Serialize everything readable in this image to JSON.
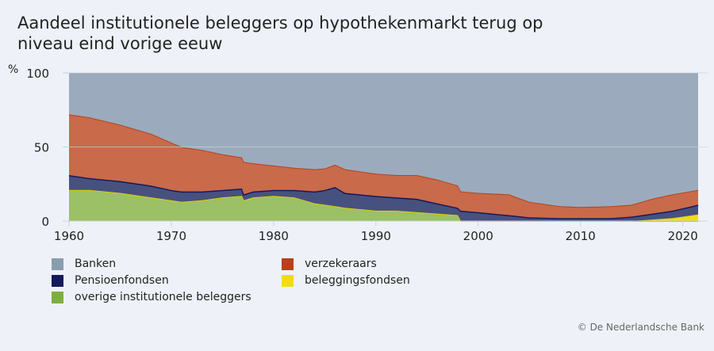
{
  "chart_data": {
    "type": "area",
    "stacked": true,
    "title": "Aandeel institutionele beleggers op hypothekenmarkt terug op niveau eind vorige eeuw",
    "title_lines": [
      "Aandeel institutionele beleggers op hypothekenmarkt terug op",
      "niveau eind vorige eeuw"
    ],
    "ylabel": "%",
    "xlabel": "",
    "ylim": [
      0,
      100
    ],
    "xlim": [
      1960,
      2021.5
    ],
    "yticks": [
      "0",
      "50",
      "100"
    ],
    "xticks": [
      "1960",
      "1970",
      "1980",
      "1990",
      "2000",
      "2010",
      "2020"
    ],
    "grid": true,
    "legend_placement": "bottom",
    "x": [
      1960,
      1962,
      1965,
      1968,
      1970,
      1971,
      1973,
      1975,
      1976.9,
      1977.1,
      1978,
      1980,
      1982,
      1984,
      1985,
      1986,
      1987,
      1990,
      1992,
      1994,
      1996,
      1998,
      1998.3,
      2000,
      2003,
      2005,
      2008,
      2010,
      2013,
      2015,
      2017,
      2019,
      2021.5
    ],
    "series": [
      {
        "name": "overige institutionele beleggers",
        "color": "#9bc066",
        "line": "#8ab34f",
        "values": [
          21,
          21,
          19,
          16,
          14,
          13,
          14,
          16,
          17,
          14,
          16,
          17,
          16,
          12,
          11,
          10,
          9,
          7,
          7,
          6,
          5,
          4,
          0,
          0,
          0,
          0,
          0,
          0,
          0,
          0,
          0,
          0,
          0
        ]
      },
      {
        "name": "beleggingsfondsen",
        "color": "#f0dc1c",
        "line": "#e6cf00",
        "values": [
          0,
          0,
          0,
          0,
          0,
          0,
          0,
          0,
          0,
          0,
          0,
          0,
          0,
          0,
          0,
          0,
          0,
          0,
          0,
          0,
          0,
          0,
          0,
          0,
          0,
          0,
          0,
          0,
          0,
          0,
          1,
          2,
          4.5
        ]
      },
      {
        "name": "Pensioenfondsen",
        "color": "#47517f",
        "line": "#141a5c",
        "values": [
          10,
          8,
          8,
          8,
          7,
          7,
          6,
          5,
          5,
          4,
          4,
          4,
          5,
          8,
          10,
          13,
          10,
          10,
          9,
          9,
          7,
          5,
          7,
          6,
          4,
          2.5,
          2,
          2,
          2,
          3,
          4,
          5,
          6.5
        ]
      },
      {
        "name": "verzekeraars",
        "color": "#c96a4b",
        "line": "#b5421b",
        "values": [
          41,
          41,
          38,
          35,
          32,
          30,
          28,
          24,
          21,
          22,
          19,
          16.5,
          15,
          15,
          14.5,
          15,
          16,
          15,
          15,
          16,
          16,
          15,
          13,
          13,
          14,
          10.5,
          8,
          7.5,
          8,
          8,
          10,
          11,
          10
        ]
      },
      {
        "name": "Banken",
        "color": "#9babbd",
        "line": "#9babbd",
        "values": [
          28,
          30,
          35,
          41,
          47,
          50,
          52,
          55,
          57,
          60,
          61,
          62.5,
          64,
          65,
          64.5,
          62,
          65,
          68,
          69,
          69,
          72,
          76,
          80,
          81,
          82,
          87,
          90,
          90.5,
          90,
          89,
          85,
          82,
          79
        ]
      }
    ]
  },
  "legend": [
    {
      "label": "Banken",
      "color": "#8a9db0"
    },
    {
      "label": "verzekeraars",
      "color": "#b5421b"
    },
    {
      "label": "Pensioenfondsen",
      "color": "#141a5c"
    },
    {
      "label": "beleggingsfondsen",
      "color": "#f2dc10"
    },
    {
      "label": "overige institutionele beleggers",
      "color": "#7fae3e"
    }
  ],
  "copyright": "© De Nederlandsche Bank"
}
